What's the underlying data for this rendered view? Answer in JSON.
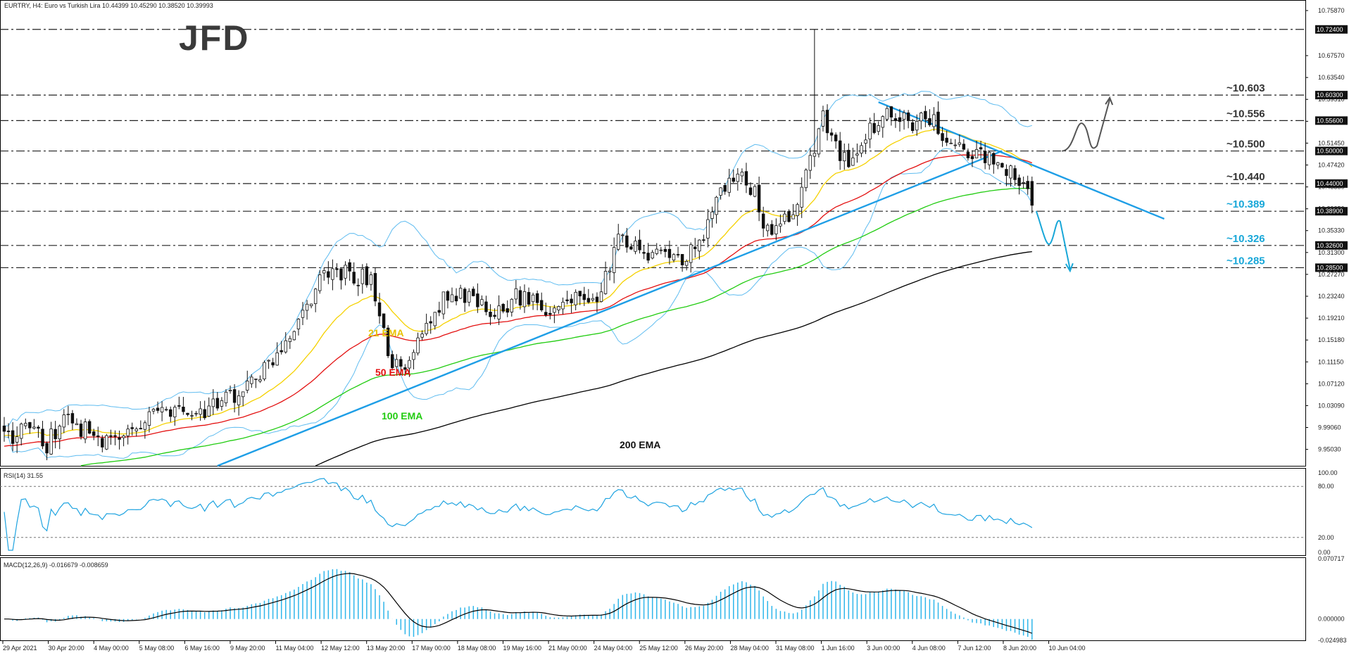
{
  "header": {
    "title": "EURTRY, H4:  Euro vs Turkish Lira  10.44399 10.45290 10.38520 10.39993",
    "rsi_label": "RSI(14) 31.55",
    "macd_label": "MACD(12,26,9) -0.016679 -0.008659"
  },
  "logo": {
    "text": "JFD"
  },
  "colors": {
    "candle": "#111111",
    "candle_up_fill": "#ffffff",
    "ema21": "#f5d100",
    "ema50": "#e31010",
    "ema100": "#22cc11",
    "ema200": "#000000",
    "bollinger": "#5fbcf0",
    "trendline": "#1e9ee6",
    "support_label": "#18a7d8",
    "resistance_label": "#333333",
    "rsi_line": "#1ea3e0",
    "macd_hist": "#2fb6ea",
    "macd_signal": "#000000"
  },
  "price_axis": {
    "ticks": [
      "10.75870",
      "10.67570",
      "10.63540",
      "10.59510",
      "10.55470",
      "10.51450",
      "10.47420",
      "10.43380",
      "10.39350",
      "10.35330",
      "10.31300",
      "10.27270",
      "10.23240",
      "10.19210",
      "10.15180",
      "10.11150",
      "10.07120",
      "10.03090",
      "9.99060",
      "9.95030"
    ],
    "badges": [
      "10.72400",
      "10.60300",
      "10.55600",
      "10.50000",
      "10.44000",
      "10.38900",
      "10.32600",
      "10.28500"
    ],
    "current": "10.38900"
  },
  "levels": [
    {
      "text": "~10.603",
      "value": 10.603,
      "kind": "resistance"
    },
    {
      "text": "~10.556",
      "value": 10.556,
      "kind": "resistance"
    },
    {
      "text": "~10.500",
      "value": 10.5,
      "kind": "resistance"
    },
    {
      "text": "~10.440",
      "value": 10.44,
      "kind": "resistance"
    },
    {
      "text": "~10.389",
      "value": 10.389,
      "kind": "support"
    },
    {
      "text": "~10.326",
      "value": 10.326,
      "kind": "support"
    },
    {
      "text": "~10.285",
      "value": 10.285,
      "kind": "support"
    }
  ],
  "top_level": 10.724,
  "ema_labels": {
    "ema21": "21 EMA",
    "ema50": "50 EMA",
    "ema100": "100 EMA",
    "ema200": "200 EMA"
  },
  "rsi_axis": {
    "ticks": [
      "100.00",
      "80.00",
      "20.00",
      "0.00"
    ],
    "levels": [
      80,
      20
    ]
  },
  "macd_axis": {
    "ticks": [
      "0.070717",
      "0.000000",
      "-0.024983"
    ]
  },
  "x_axis": {
    "labels": [
      "29 Apr 2021",
      "30 Apr 20:00",
      "4 May 00:00",
      "5 May 08:00",
      "6 May 16:00",
      "9 May 20:00",
      "11 May 04:00",
      "12 May 12:00",
      "13 May 20:00",
      "17 May 00:00",
      "18 May 08:00",
      "19 May 16:00",
      "21 May 00:00",
      "24 May 04:00",
      "25 May 12:00",
      "26 May 20:00",
      "28 May 04:00",
      "31 May 08:00",
      "1 Jun 16:00",
      "3 Jun 00:00",
      "4 Jun 08:00",
      "7 Jun 12:00",
      "8 Jun 20:00",
      "10 Jun 04:00"
    ]
  },
  "chart_data": {
    "type": "candlestick",
    "symbol": "EURTRY",
    "timeframe": "H4",
    "last_ohlc": {
      "open": 10.44399,
      "high": 10.4529,
      "low": 10.3852,
      "close": 10.39993
    },
    "close_path": [
      [
        0,
        9.97
      ],
      [
        6,
        9.99
      ],
      [
        10,
        9.96
      ],
      [
        14,
        10.01
      ],
      [
        20,
        9.98
      ],
      [
        26,
        9.96
      ],
      [
        32,
        10.0
      ],
      [
        38,
        10.02
      ],
      [
        44,
        10.01
      ],
      [
        50,
        10.03
      ],
      [
        56,
        10.06
      ],
      [
        62,
        10.1
      ],
      [
        66,
        10.15
      ],
      [
        70,
        10.2
      ],
      [
        74,
        10.26
      ],
      [
        78,
        10.28
      ],
      [
        82,
        10.27
      ],
      [
        86,
        10.26
      ],
      [
        88,
        10.21
      ],
      [
        90,
        10.11
      ],
      [
        94,
        10.09
      ],
      [
        96,
        10.13
      ],
      [
        100,
        10.19
      ],
      [
        104,
        10.24
      ],
      [
        108,
        10.23
      ],
      [
        112,
        10.22
      ],
      [
        116,
        10.2
      ],
      [
        120,
        10.23
      ],
      [
        124,
        10.22
      ],
      [
        128,
        10.21
      ],
      [
        132,
        10.23
      ],
      [
        136,
        10.22
      ],
      [
        140,
        10.24
      ],
      [
        144,
        10.33
      ],
      [
        148,
        10.33
      ],
      [
        152,
        10.31
      ],
      [
        156,
        10.3
      ],
      [
        160,
        10.3
      ],
      [
        164,
        10.35
      ],
      [
        168,
        10.42
      ],
      [
        172,
        10.45
      ],
      [
        176,
        10.43
      ],
      [
        178,
        10.37
      ],
      [
        180,
        10.35
      ],
      [
        184,
        10.38
      ],
      [
        188,
        10.45
      ],
      [
        192,
        10.56
      ],
      [
        194,
        10.54
      ],
      [
        196,
        10.48
      ],
      [
        200,
        10.49
      ],
      [
        204,
        10.55
      ],
      [
        206,
        10.56
      ],
      [
        210,
        10.57
      ],
      [
        212,
        10.56
      ],
      [
        214,
        10.55
      ],
      [
        218,
        10.57
      ],
      [
        220,
        10.52
      ],
      [
        224,
        10.5
      ],
      [
        228,
        10.49
      ],
      [
        232,
        10.48
      ],
      [
        234,
        10.47
      ],
      [
        236,
        10.46
      ],
      [
        238,
        10.45
      ],
      [
        241,
        10.4
      ]
    ],
    "x_range": [
      0,
      245
    ],
    "ylim": [
      9.92,
      10.76
    ],
    "indicators": [
      "21 EMA",
      "50 EMA",
      "100 EMA",
      "200 EMA",
      "Bollinger Bands",
      "RSI(14)",
      "MACD(12,26,9)"
    ],
    "rsi_last": 31.55,
    "macd_last": {
      "main": -0.016679,
      "signal": -0.008659
    }
  }
}
